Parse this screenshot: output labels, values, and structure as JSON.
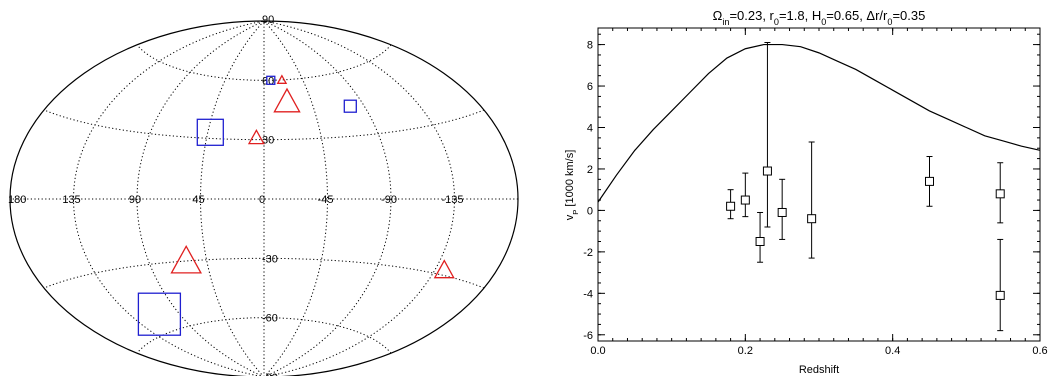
{
  "chart_data": [
    {
      "type": "scatter",
      "projection": "aitoff",
      "title": "",
      "longitude_ticks": [
        {
          "value": 180,
          "label": "180"
        },
        {
          "value": 135,
          "label": "135"
        },
        {
          "value": 90,
          "label": "90"
        },
        {
          "value": 45,
          "label": "45"
        },
        {
          "value": 0,
          "label": "0"
        },
        {
          "value": -45,
          "label": "-45"
        },
        {
          "value": -90,
          "label": "-90"
        },
        {
          "value": -135,
          "label": "-135"
        }
      ],
      "latitude_ticks": [
        {
          "value": 90,
          "label": "90"
        },
        {
          "value": 60,
          "label": "60"
        },
        {
          "value": 30,
          "label": "30"
        },
        {
          "value": -30,
          "label": "-30"
        },
        {
          "value": -60,
          "label": "-60"
        },
        {
          "value": -90,
          "label": "-90"
        }
      ],
      "grid": true,
      "series": [
        {
          "marker": "square",
          "color": "#1f1fd0",
          "points": [
            {
              "lon": -8,
              "lat": 60,
              "size": 8
            },
            {
              "lon": 43,
              "lat": 33,
              "size": 26
            },
            {
              "lon": -78,
              "lat": 44,
              "size": 12
            },
            {
              "lon": 109,
              "lat": -52,
              "size": 42
            }
          ]
        },
        {
          "marker": "triangle",
          "color": "#e02020",
          "points": [
            {
              "lon": -21,
              "lat": 60,
              "size": 8
            },
            {
              "lon": -22,
              "lat": 49,
              "size": 24
            },
            {
              "lon": 6,
              "lat": 31,
              "size": 14
            },
            {
              "lon": 61,
              "lat": -30,
              "size": 28
            },
            {
              "lon": -142,
              "lat": -28,
              "size": 18
            }
          ]
        }
      ]
    },
    {
      "type": "scatter",
      "title_parts": [
        {
          "t": "Ω",
          "s": "n"
        },
        {
          "t": "in",
          "s": "sub"
        },
        {
          "t": "=0.23, r",
          "s": "n"
        },
        {
          "t": "0",
          "s": "sub"
        },
        {
          "t": "=1.8, H",
          "s": "n"
        },
        {
          "t": "0",
          "s": "sub"
        },
        {
          "t": "=0.65, Δr/r",
          "s": "n"
        },
        {
          "t": "0",
          "s": "sub"
        },
        {
          "t": "=0.35",
          "s": "n"
        }
      ],
      "xlabel": "Redshift",
      "ylabel_parts": [
        {
          "t": "v",
          "s": "n"
        },
        {
          "t": "P",
          "s": "sub"
        },
        {
          "t": " [1000 km/s]",
          "s": "n"
        }
      ],
      "xlim": [
        0,
        0.6
      ],
      "ylim": [
        -6.3,
        8.8
      ],
      "xticks": [
        0.0,
        0.2,
        0.4,
        0.6
      ],
      "xtick_labels": [
        "0.0",
        "0.2",
        "0.4",
        "0.6"
      ],
      "yticks": [
        -6,
        -4,
        -2,
        0,
        2,
        4,
        6,
        8
      ],
      "ytick_labels": [
        "-6",
        "-4",
        "-2",
        "0",
        "2",
        "4",
        "6",
        "8"
      ],
      "grid": false,
      "points": [
        {
          "x": 0.18,
          "y": 0.2,
          "lo": -0.4,
          "hi": 1.0
        },
        {
          "x": 0.2,
          "y": 0.5,
          "lo": -0.3,
          "hi": 1.8
        },
        {
          "x": 0.22,
          "y": -1.5,
          "lo": -2.5,
          "hi": -0.1
        },
        {
          "x": 0.23,
          "y": 1.9,
          "lo": -0.8,
          "hi": 8.1
        },
        {
          "x": 0.25,
          "y": -0.1,
          "lo": -1.4,
          "hi": 1.5
        },
        {
          "x": 0.29,
          "y": -0.4,
          "lo": -2.3,
          "hi": 3.3
        },
        {
          "x": 0.45,
          "y": 1.4,
          "lo": 0.2,
          "hi": 2.6
        },
        {
          "x": 0.546,
          "y": 0.8,
          "lo": -0.6,
          "hi": 2.3
        },
        {
          "x": 0.546,
          "y": -4.1,
          "lo": -5.8,
          "hi": -1.4
        }
      ],
      "model_curve": {
        "x": [
          0.0,
          0.025,
          0.05,
          0.075,
          0.1,
          0.125,
          0.15,
          0.175,
          0.2,
          0.225,
          0.25,
          0.275,
          0.3,
          0.325,
          0.35,
          0.375,
          0.4,
          0.425,
          0.45,
          0.475,
          0.5,
          0.525,
          0.55,
          0.575,
          0.6
        ],
        "y": [
          0.4,
          1.7,
          2.9,
          3.9,
          4.8,
          5.7,
          6.6,
          7.35,
          7.8,
          8.0,
          8.0,
          7.9,
          7.6,
          7.2,
          6.8,
          6.3,
          5.8,
          5.3,
          4.8,
          4.4,
          4.0,
          3.6,
          3.35,
          3.1,
          2.9
        ]
      }
    }
  ]
}
